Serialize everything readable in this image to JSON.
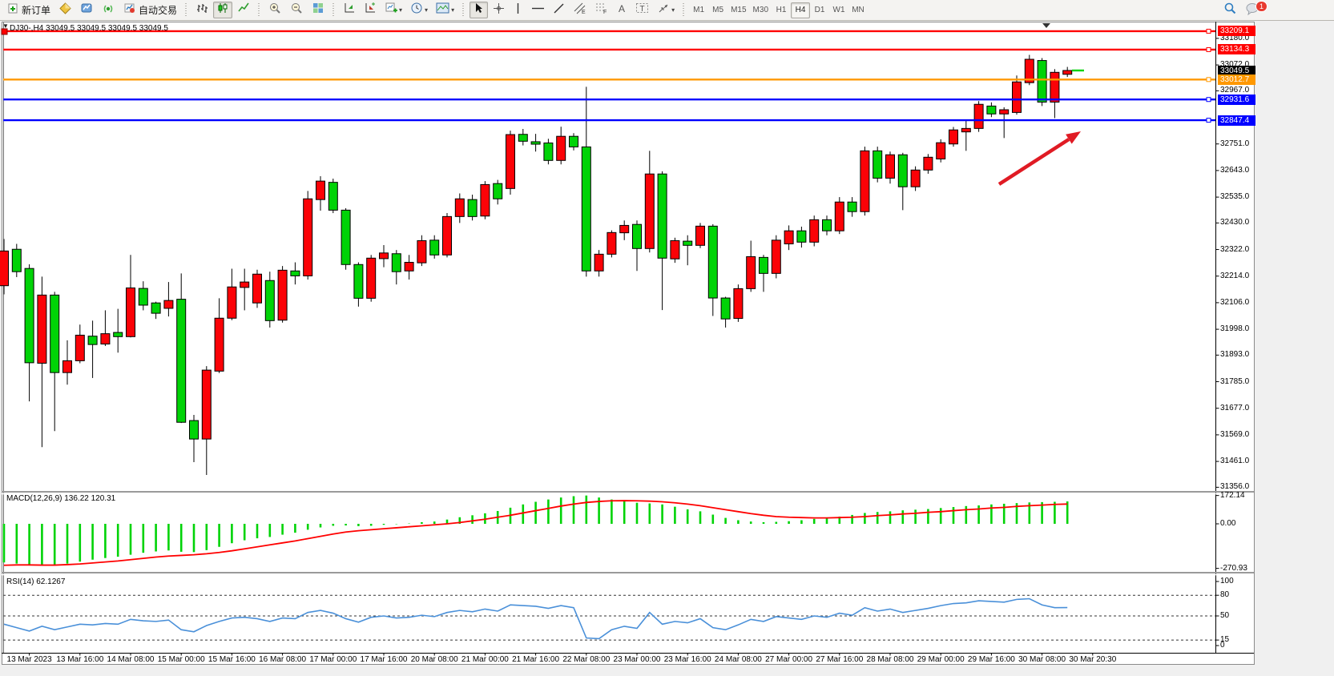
{
  "toolbar": {
    "new_order_label": "新订单",
    "auto_trading_label": "自动交易",
    "timeframes": [
      "M1",
      "M5",
      "M15",
      "M30",
      "H1",
      "H4",
      "D1",
      "W1",
      "MN"
    ],
    "active_timeframe": "H4",
    "chat_badge": "1"
  },
  "chart": {
    "title": "DJ30-,H4  33049.5 33049.5 33049.5 33049.5",
    "expand_glyph": "▼"
  },
  "chart_data": {
    "type": "candlestick",
    "symbol": "DJ30-",
    "period": "H4",
    "title": "DJ30-,H4 33049.5 33049.5 33049.5 33049.5",
    "current_price": 33049.5,
    "colors": {
      "bull": "#fb0207",
      "bear": "#00d307",
      "wick": "#000000",
      "macd_hist": "#00d307",
      "macd_signal": "#ff0000",
      "rsi_line": "#4a90d9",
      "line_red": "#ff0000",
      "line_orange": "#ff9800",
      "line_blue": "#0000ff",
      "arrow": "#e01b24",
      "current_dash": "#00d307",
      "badge_current": "#000000"
    },
    "price_axis": {
      "ticks": [
        "33180.0",
        "33072.0",
        "32967.0",
        "32751.0",
        "32643.0",
        "32535.0",
        "32430.0",
        "32322.0",
        "32214.0",
        "32106.0",
        "31998.0",
        "31893.0",
        "31785.0",
        "31677.0",
        "31569.0",
        "31461.0",
        "31356.0"
      ],
      "tick_values": [
        33180,
        33072,
        32967,
        32751,
        32643,
        32535,
        32430,
        32322,
        32214,
        32106,
        31998,
        31893,
        31785,
        31677,
        31569,
        31461,
        31356
      ],
      "badges": [
        {
          "label": "33209.1",
          "value": 33209.1,
          "color": "#ff0000"
        },
        {
          "label": "33134.3",
          "value": 33134.3,
          "color": "#ff0000"
        },
        {
          "label": "33049.5",
          "value": 33049.5,
          "color": "#000000"
        },
        {
          "label": "33012.7",
          "value": 33012.7,
          "color": "#ff9800"
        },
        {
          "label": "32931.6",
          "value": 32931.6,
          "color": "#0000ff"
        },
        {
          "label": "32847.4",
          "value": 32847.4,
          "color": "#0000ff"
        }
      ]
    },
    "time_axis": {
      "labels": [
        "13 Mar 2023",
        "13 Mar 16:00",
        "14 Mar 08:00",
        "15 Mar 00:00",
        "15 Mar 16:00",
        "16 Mar 08:00",
        "17 Mar 00:00",
        "17 Mar 16:00",
        "20 Mar 08:00",
        "21 Mar 00:00",
        "21 Mar 16:00",
        "22 Mar 08:00",
        "23 Mar 00:00",
        "23 Mar 16:00",
        "24 Mar 08:00",
        "27 Mar 00:00",
        "27 Mar 16:00",
        "28 Mar 08:00",
        "29 Mar 00:00",
        "29 Mar 16:00",
        "30 Mar 08:00",
        "30 Mar 20:30"
      ]
    },
    "hlines": [
      {
        "price": 33209.1,
        "color": "#ff0000",
        "left_handle": true
      },
      {
        "price": 33134.3,
        "color": "#ff0000",
        "left_handle": false
      },
      {
        "price": 33012.7,
        "color": "#ff9800",
        "left_handle": false
      },
      {
        "price": 32931.6,
        "color": "#0000ff",
        "left_handle": false
      },
      {
        "price": 32847.4,
        "color": "#0000ff",
        "left_handle": false
      }
    ],
    "arrow_annotation": {
      "from": [
        1247,
        230
      ],
      "to": [
        1334,
        174
      ],
      "tip": [
        1349,
        164
      ]
    },
    "candles": [
      [
        32175,
        32365,
        32140,
        32316
      ],
      [
        32323,
        32345,
        32210,
        32232
      ],
      [
        32245,
        32262,
        31705,
        31862
      ],
      [
        31860,
        32212,
        31519,
        32137
      ],
      [
        32137,
        32150,
        31584,
        31822
      ],
      [
        31822,
        31953,
        31773,
        31870
      ],
      [
        31870,
        32017,
        31860,
        31974
      ],
      [
        31970,
        32033,
        31800,
        31936
      ],
      [
        31938,
        32075,
        31930,
        31980
      ],
      [
        31985,
        32081,
        31903,
        31968
      ],
      [
        31968,
        32300,
        31965,
        32166
      ],
      [
        32164,
        32193,
        32075,
        32096
      ],
      [
        32105,
        32110,
        32040,
        32063
      ],
      [
        32083,
        32190,
        32050,
        32115
      ],
      [
        32120,
        32225,
        31617,
        31620
      ],
      [
        31627,
        31650,
        31458,
        31552
      ],
      [
        31552,
        31848,
        31406,
        31832
      ],
      [
        31828,
        32124,
        31820,
        32043
      ],
      [
        32043,
        32244,
        32035,
        32170
      ],
      [
        32168,
        32244,
        32075,
        32190
      ],
      [
        32105,
        32240,
        32085,
        32222
      ],
      [
        32196,
        32232,
        32005,
        32033
      ],
      [
        32035,
        32255,
        32025,
        32238
      ],
      [
        32235,
        32270,
        32180,
        32215
      ],
      [
        32215,
        32560,
        32200,
        32528
      ],
      [
        32525,
        32620,
        32480,
        32600
      ],
      [
        32595,
        32610,
        32470,
        32482
      ],
      [
        32482,
        32490,
        32240,
        32261
      ],
      [
        32261,
        32270,
        32090,
        32124
      ],
      [
        32124,
        32300,
        32110,
        32287
      ],
      [
        32285,
        32340,
        32250,
        32308
      ],
      [
        32305,
        32320,
        32180,
        32232
      ],
      [
        32235,
        32300,
        32200,
        32270
      ],
      [
        32268,
        32380,
        32255,
        32358
      ],
      [
        32360,
        32380,
        32285,
        32300
      ],
      [
        32300,
        32470,
        32290,
        32456
      ],
      [
        32456,
        32550,
        32430,
        32528
      ],
      [
        32525,
        32545,
        32440,
        32456
      ],
      [
        32458,
        32600,
        32445,
        32586
      ],
      [
        32590,
        32605,
        32505,
        32528
      ],
      [
        32570,
        32805,
        32545,
        32789
      ],
      [
        32790,
        32812,
        32745,
        32762
      ],
      [
        32760,
        32792,
        32720,
        32750
      ],
      [
        32755,
        32772,
        32668,
        32684
      ],
      [
        32684,
        32821,
        32668,
        32782
      ],
      [
        32782,
        32795,
        32725,
        32739
      ],
      [
        32739,
        32983,
        32212,
        32235
      ],
      [
        32235,
        32320,
        32212,
        32303
      ],
      [
        32303,
        32400,
        32290,
        32391
      ],
      [
        32390,
        32440,
        32360,
        32420
      ],
      [
        32424,
        32440,
        32235,
        32326
      ],
      [
        32326,
        32723,
        32310,
        32629
      ],
      [
        32629,
        32640,
        32076,
        32287
      ],
      [
        32284,
        32370,
        32268,
        32358
      ],
      [
        32356,
        32380,
        32258,
        32339
      ],
      [
        32339,
        32430,
        32328,
        32417
      ],
      [
        32417,
        32425,
        32052,
        32125
      ],
      [
        32125,
        32130,
        32005,
        32040
      ],
      [
        32042,
        32180,
        32028,
        32163
      ],
      [
        32163,
        32358,
        32150,
        32293
      ],
      [
        32290,
        32300,
        32150,
        32225
      ],
      [
        32225,
        32380,
        32205,
        32360
      ],
      [
        32345,
        32420,
        32320,
        32398
      ],
      [
        32398,
        32415,
        32330,
        32352
      ],
      [
        32352,
        32460,
        32335,
        32443
      ],
      [
        32443,
        32460,
        32380,
        32398
      ],
      [
        32398,
        32535,
        32385,
        32515
      ],
      [
        32515,
        32535,
        32455,
        32476
      ],
      [
        32476,
        32740,
        32460,
        32723
      ],
      [
        32723,
        32740,
        32595,
        32612
      ],
      [
        32612,
        32720,
        32590,
        32707
      ],
      [
        32707,
        32715,
        32482,
        32577
      ],
      [
        32577,
        32660,
        32560,
        32645
      ],
      [
        32645,
        32710,
        32630,
        32697
      ],
      [
        32690,
        32770,
        32676,
        32756
      ],
      [
        32751,
        32820,
        32740,
        32808
      ],
      [
        32800,
        32850,
        32723,
        32814
      ],
      [
        32814,
        32925,
        32800,
        32912
      ],
      [
        32905,
        32920,
        32860,
        32873
      ],
      [
        32873,
        32900,
        32775,
        32890
      ],
      [
        32879,
        33029,
        32870,
        33003
      ],
      [
        33000,
        33113,
        32990,
        33095
      ],
      [
        33090,
        33100,
        32905,
        32921
      ],
      [
        32921,
        33055,
        32856,
        33042
      ],
      [
        33034,
        33064,
        33023,
        33049.5
      ]
    ],
    "macd": {
      "label": "MACD(12,26,9) 136.22 120.31",
      "params": "12,26,9",
      "value_main": 136.22,
      "value_signal": 120.31,
      "scale_labels": [
        "172.14",
        "0.00",
        "-270.93"
      ],
      "scale_values": [
        172.14,
        0,
        -270.93
      ],
      "hist": [
        -235,
        -242,
        -248,
        -252,
        -250,
        -242,
        -230,
        -218,
        -208,
        -200,
        -188,
        -176,
        -168,
        -162,
        -170,
        -172,
        -160,
        -140,
        -118,
        -100,
        -88,
        -80,
        -66,
        -54,
        -36,
        -22,
        -12,
        -10,
        -14,
        -12,
        -6,
        -2,
        2,
        10,
        14,
        26,
        40,
        52,
        64,
        78,
        98,
        118,
        134,
        148,
        160,
        168,
        172,
        160,
        148,
        138,
        128,
        124,
        118,
        104,
        88,
        76,
        56,
        36,
        22,
        14,
        10,
        12,
        16,
        22,
        30,
        36,
        44,
        54,
        66,
        72,
        76,
        82,
        86,
        90,
        96,
        102,
        108,
        112,
        118,
        122,
        126,
        130,
        132,
        134,
        136.22
      ],
      "signal": [
        -252,
        -250,
        -250,
        -251,
        -251,
        -248,
        -244,
        -238,
        -232,
        -226,
        -218,
        -210,
        -202,
        -196,
        -192,
        -188,
        -182,
        -174,
        -164,
        -152,
        -140,
        -128,
        -116,
        -104,
        -90,
        -76,
        -62,
        -50,
        -42,
        -36,
        -30,
        -24,
        -18,
        -12,
        -6,
        0,
        8,
        18,
        28,
        40,
        52,
        66,
        80,
        94,
        108,
        120,
        130,
        136,
        140,
        141,
        140,
        138,
        134,
        128,
        120,
        110,
        98,
        86,
        74,
        62,
        52,
        44,
        40,
        38,
        36,
        36,
        38,
        40,
        44,
        50,
        54,
        60,
        64,
        70,
        74,
        80,
        86,
        90,
        96,
        100,
        106,
        110,
        114,
        118,
        120.31
      ]
    },
    "rsi": {
      "label": "RSI(14) 62.1267",
      "period": 14,
      "value": 62.1267,
      "levels": [
        80,
        50,
        15
      ],
      "scale_labels": [
        "100",
        "80",
        "50",
        "15",
        "0"
      ],
      "scale_values": [
        100,
        80,
        50,
        15,
        0
      ],
      "values": [
        38,
        33,
        28,
        35,
        30,
        34,
        38,
        37,
        39,
        38,
        45,
        43,
        42,
        44,
        30,
        27,
        36,
        42,
        47,
        48,
        46,
        42,
        47,
        46,
        55,
        58,
        54,
        46,
        41,
        48,
        50,
        47,
        48,
        51,
        49,
        55,
        58,
        56,
        60,
        57,
        66,
        65,
        64,
        61,
        65,
        62,
        18,
        17,
        30,
        35,
        32,
        55,
        38,
        42,
        40,
        46,
        33,
        30,
        37,
        45,
        42,
        49,
        47,
        45,
        50,
        48,
        54,
        51,
        62,
        57,
        60,
        55,
        58,
        61,
        65,
        68,
        69,
        72,
        71,
        70,
        74,
        75,
        66,
        62,
        62.13
      ]
    }
  }
}
